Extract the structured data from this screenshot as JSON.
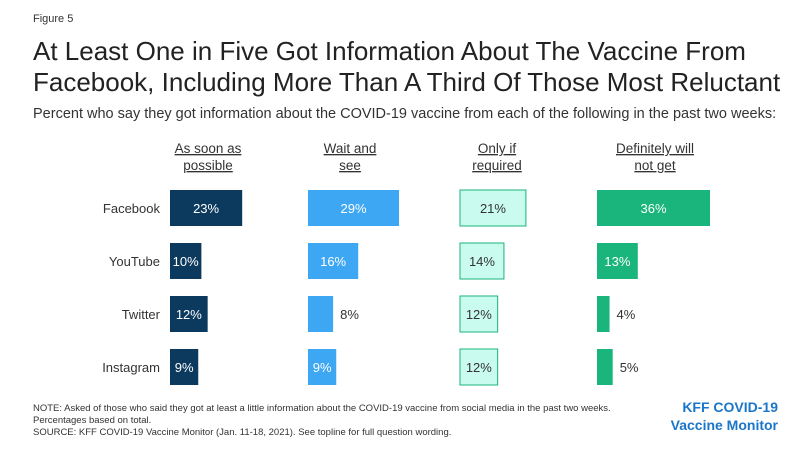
{
  "figure_label": "Figure 5",
  "title": "At Least One in Five Got Information About The Vaccine From\nFacebook, Including More Than A Third Of Those Most Reluctant",
  "subtitle": "Percent who say they got information about the COVID-19 vaccine from each of the following in the past two weeks:",
  "chart_data": {
    "type": "bar",
    "orientation": "horizontal-small-multiples",
    "title": "",
    "categories": [
      "Facebook",
      "YouTube",
      "Twitter",
      "Instagram"
    ],
    "series": [
      {
        "name": "As soon as possible",
        "values": [
          23,
          10,
          12,
          9
        ],
        "color": "#0b3a5e",
        "label_color": "#ffffff"
      },
      {
        "name": "Wait and see",
        "values": [
          29,
          16,
          8,
          9
        ],
        "color": "#3ea7f3",
        "label_color": "#ffffff"
      },
      {
        "name": "Only if required",
        "values": [
          21,
          14,
          12,
          12
        ],
        "color": "#c9fbee",
        "label_color": "#333333"
      },
      {
        "name": "Definitely will not get",
        "values": [
          36,
          13,
          4,
          5
        ],
        "color": "#1ab57c",
        "label_color": "#ffffff"
      }
    ],
    "value_suffix": "%",
    "xlim": [
      0,
      36
    ],
    "grid": false,
    "legend": "column-headers"
  },
  "note_lines": [
    "NOTE: Asked of those who said they got at least a little information about the COVID-19 vaccine from social media in the past two weeks.",
    "Percentages based on total.",
    "SOURCE: KFF COVID-19 Vaccine Monitor (Jan. 11-18, 2021). See topline for full question wording."
  ],
  "brand": {
    "line1": "KFF COVID-19",
    "line2": "Vaccine Monitor",
    "color": "#1a76c9"
  }
}
